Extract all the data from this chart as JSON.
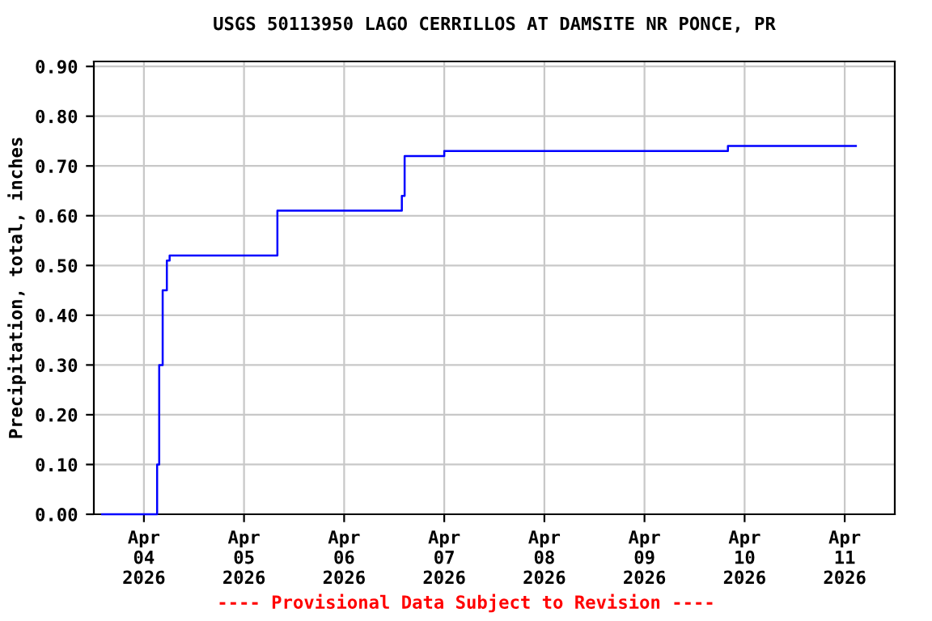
{
  "chart_data": {
    "type": "step",
    "title": "USGS 50113950 LAGO CERRILLOS AT DAMSITE NR PONCE, PR",
    "ylabel": "Precipitation, total, inches",
    "series": [
      {
        "color": "#0000ff",
        "x": [
          "2026-04-03T14:00",
          "2026-04-04T02:40",
          "2026-04-04T03:10",
          "2026-04-04T03:40",
          "2026-04-04T04:30",
          "2026-04-04T05:30",
          "2026-04-04T06:10",
          "2026-04-05T07:20",
          "2026-04-05T08:00",
          "2026-04-06T13:10",
          "2026-04-06T13:50",
          "2026-04-06T14:30",
          "2026-04-07T00:00",
          "2026-04-09T20:00",
          "2026-04-11T02:40"
        ],
        "values": [
          0.0,
          0.0,
          0.1,
          0.3,
          0.45,
          0.51,
          0.52,
          0.52,
          0.61,
          0.61,
          0.64,
          0.72,
          0.73,
          0.74,
          0.74
        ]
      }
    ],
    "xlim": [
      "2026-04-03T12:00",
      "2026-04-11T12:00"
    ],
    "xticks": [
      {
        "value": "2026-04-04",
        "label": "Apr\n04\n2026"
      },
      {
        "value": "2026-04-05",
        "label": "Apr\n05\n2026"
      },
      {
        "value": "2026-04-06",
        "label": "Apr\n06\n2026"
      },
      {
        "value": "2026-04-07",
        "label": "Apr\n07\n2026"
      },
      {
        "value": "2026-04-08",
        "label": "Apr\n08\n2026"
      },
      {
        "value": "2026-04-09",
        "label": "Apr\n09\n2026"
      },
      {
        "value": "2026-04-10",
        "label": "Apr\n10\n2026"
      },
      {
        "value": "2026-04-11",
        "label": "Apr\n11\n2026"
      }
    ],
    "ylim": [
      0,
      0.91
    ],
    "yticks": [
      {
        "value": 0,
        "label": "0.00"
      },
      {
        "value": 0.1,
        "label": "0.10"
      },
      {
        "value": 0.2,
        "label": "0.20"
      },
      {
        "value": 0.3,
        "label": "0.30"
      },
      {
        "value": 0.4,
        "label": "0.40"
      },
      {
        "value": 0.5,
        "label": "0.50"
      },
      {
        "value": 0.6,
        "label": "0.60"
      },
      {
        "value": 0.7,
        "label": "0.70"
      },
      {
        "value": 0.8,
        "label": "0.80"
      },
      {
        "value": 0.9,
        "label": "0.90"
      }
    ],
    "grid": true,
    "legend": false,
    "annotations": [
      "---- Provisional Data Subject to Revision ----"
    ]
  }
}
